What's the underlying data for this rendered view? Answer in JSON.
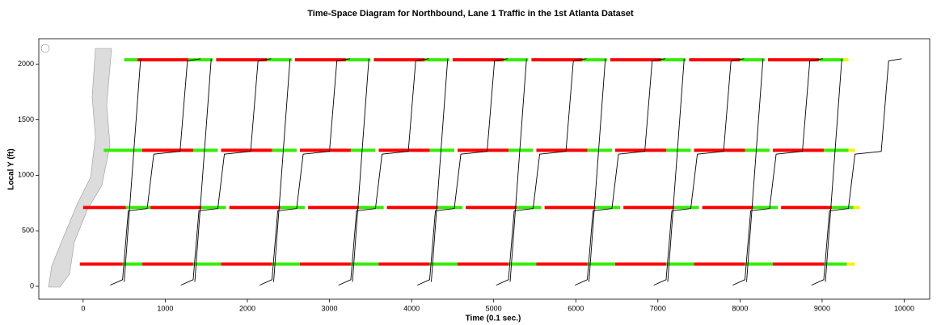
{
  "chart_data": {
    "type": "time-space",
    "title": "Time-Space Diagram for Northbound, Lane 1 Traffic in the 1st Atlanta Dataset",
    "x_label": "Time (0.1 sec.)",
    "y_label": "Local Y (ft)",
    "xlim": [
      -540,
      10310
    ],
    "ylim": [
      -116,
      2230
    ],
    "xticks": [
      0,
      1000,
      2000,
      3000,
      4000,
      5000,
      6000,
      7000,
      8000,
      9000,
      10000
    ],
    "yticks": [
      0,
      500,
      1000,
      1500,
      2000
    ],
    "signal_colors": {
      "red": "#ff0000",
      "green": "#33ee00",
      "yellow": "#ffee00"
    },
    "signals": [
      {
        "y": 2040,
        "green": [
          [
            500,
            660
          ],
          [
            1280,
            1580
          ],
          [
            2240,
            2540
          ],
          [
            3200,
            3500
          ],
          [
            4160,
            4460
          ],
          [
            5120,
            5420
          ],
          [
            6080,
            6380
          ],
          [
            7040,
            7340
          ],
          [
            8000,
            8300
          ],
          [
            8960,
            9260
          ]
        ],
        "red": [
          [
            660,
            1280
          ],
          [
            1620,
            2240
          ],
          [
            2580,
            3200
          ],
          [
            3540,
            4160
          ],
          [
            4500,
            5120
          ],
          [
            5460,
            6080
          ],
          [
            6420,
            7040
          ],
          [
            7380,
            8000
          ],
          [
            8340,
            8960
          ]
        ],
        "yellow": [
          [
            9260,
            9320
          ]
        ]
      },
      {
        "y": 1225,
        "green": [
          [
            250,
            720
          ],
          [
            1340,
            1640
          ],
          [
            2300,
            2600
          ],
          [
            3260,
            3560
          ],
          [
            4220,
            4520
          ],
          [
            5180,
            5480
          ],
          [
            6140,
            6440
          ],
          [
            7100,
            7400
          ],
          [
            8060,
            8360
          ],
          [
            9020,
            9320
          ]
        ],
        "red": [
          [
            720,
            1340
          ],
          [
            1680,
            2300
          ],
          [
            2640,
            3260
          ],
          [
            3600,
            4220
          ],
          [
            4560,
            5180
          ],
          [
            5520,
            6140
          ],
          [
            6480,
            7100
          ],
          [
            7440,
            8060
          ],
          [
            8400,
            9020
          ]
        ],
        "yellow": [
          [
            9320,
            9400
          ]
        ]
      },
      {
        "y": 710,
        "green": [
          [
            520,
            820
          ],
          [
            1440,
            1740
          ],
          [
            2400,
            2700
          ],
          [
            3360,
            3660
          ],
          [
            4320,
            4620
          ],
          [
            5280,
            5580
          ],
          [
            6240,
            6540
          ],
          [
            7200,
            7500
          ],
          [
            8160,
            8460
          ],
          [
            9120,
            9380
          ]
        ],
        "red": [
          [
            0,
            520
          ],
          [
            820,
            1440
          ],
          [
            1780,
            2400
          ],
          [
            2740,
            3360
          ],
          [
            3700,
            4320
          ],
          [
            4660,
            5280
          ],
          [
            5620,
            6240
          ],
          [
            6580,
            7200
          ],
          [
            7540,
            8160
          ],
          [
            8500,
            9120
          ]
        ],
        "yellow": [
          [
            9380,
            9460
          ]
        ]
      },
      {
        "y": 200,
        "green": [
          [
            480,
            720
          ],
          [
            1340,
            1680
          ],
          [
            2300,
            2640
          ],
          [
            3260,
            3600
          ],
          [
            4220,
            4560
          ],
          [
            5180,
            5520
          ],
          [
            6140,
            6480
          ],
          [
            7100,
            7440
          ],
          [
            8060,
            8400
          ],
          [
            9020,
            9300
          ]
        ],
        "red": [
          [
            -40,
            480
          ],
          [
            720,
            1340
          ],
          [
            1680,
            2300
          ],
          [
            2640,
            3260
          ],
          [
            3600,
            4220
          ],
          [
            4560,
            5180
          ],
          [
            5520,
            6140
          ],
          [
            6480,
            7100
          ],
          [
            7440,
            8060
          ],
          [
            8400,
            9020
          ]
        ],
        "yellow": [
          [
            9300,
            9400
          ]
        ]
      }
    ],
    "trajectory_color": "#000000",
    "series": [
      {
        "x": [
          330,
          480,
          550,
          780,
          860,
          1180,
          1270,
          1430
        ],
        "y": [
          10,
          60,
          680,
          700,
          1190,
          1215,
          2030,
          2050
        ]
      },
      {
        "x": [
          500,
          700
        ],
        "y": [
          40,
          2050
        ]
      },
      {
        "x": [
          1190,
          1340,
          1410,
          1640,
          1720,
          2040,
          2130,
          2290
        ],
        "y": [
          10,
          60,
          680,
          700,
          1190,
          1215,
          2030,
          2050
        ]
      },
      {
        "x": [
          1360,
          1560
        ],
        "y": [
          40,
          2050
        ]
      },
      {
        "x": [
          2150,
          2300,
          2370,
          2600,
          2680,
          3000,
          3090,
          3250
        ],
        "y": [
          10,
          60,
          680,
          700,
          1190,
          1215,
          2030,
          2050
        ]
      },
      {
        "x": [
          2320,
          2520
        ],
        "y": [
          40,
          2050
        ]
      },
      {
        "x": [
          3110,
          3260,
          3330,
          3560,
          3640,
          3960,
          4050,
          4210
        ],
        "y": [
          10,
          60,
          680,
          700,
          1190,
          1215,
          2030,
          2050
        ]
      },
      {
        "x": [
          3280,
          3480
        ],
        "y": [
          40,
          2050
        ]
      },
      {
        "x": [
          4070,
          4220,
          4290,
          4520,
          4600,
          4920,
          5010,
          5170
        ],
        "y": [
          10,
          60,
          680,
          700,
          1190,
          1215,
          2030,
          2050
        ]
      },
      {
        "x": [
          4240,
          4440
        ],
        "y": [
          40,
          2050
        ]
      },
      {
        "x": [
          5030,
          5180,
          5250,
          5480,
          5560,
          5880,
          5970,
          6130
        ],
        "y": [
          10,
          60,
          680,
          700,
          1190,
          1215,
          2030,
          2050
        ]
      },
      {
        "x": [
          5200,
          5400
        ],
        "y": [
          40,
          2050
        ]
      },
      {
        "x": [
          5990,
          6140,
          6210,
          6440,
          6520,
          6840,
          6930,
          7090
        ],
        "y": [
          10,
          60,
          680,
          700,
          1190,
          1215,
          2030,
          2050
        ]
      },
      {
        "x": [
          6160,
          6360
        ],
        "y": [
          40,
          2050
        ]
      },
      {
        "x": [
          6950,
          7100,
          7170,
          7400,
          7480,
          7800,
          7890,
          8050
        ],
        "y": [
          10,
          60,
          680,
          700,
          1190,
          1215,
          2030,
          2050
        ]
      },
      {
        "x": [
          7120,
          7320
        ],
        "y": [
          40,
          2050
        ]
      },
      {
        "x": [
          7910,
          8060,
          8130,
          8360,
          8440,
          8760,
          8850,
          9010
        ],
        "y": [
          10,
          60,
          680,
          700,
          1190,
          1215,
          2030,
          2050
        ]
      },
      {
        "x": [
          8080,
          8280
        ],
        "y": [
          40,
          2050
        ]
      },
      {
        "x": [
          8870,
          9020,
          9090,
          9320,
          9400,
          9720,
          9810,
          9970
        ],
        "y": [
          10,
          60,
          680,
          700,
          1190,
          1215,
          2030,
          2050
        ]
      },
      {
        "x": [
          9040,
          9240
        ],
        "y": [
          40,
          2050
        ]
      }
    ]
  }
}
